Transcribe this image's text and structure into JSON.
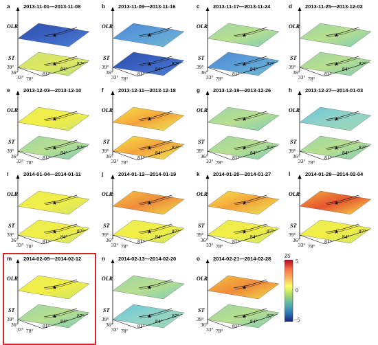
{
  "panels": [
    {
      "label": "a",
      "dates": "2013-11-01—2013-11-08",
      "top": "dark-blue",
      "bottom": "green-yellow"
    },
    {
      "label": "b",
      "dates": "2013-11-09—2013-11-16",
      "top": "blue",
      "bottom": "dark-blue"
    },
    {
      "label": "c",
      "dates": "2013-11-17—2013-11-24",
      "top": "cyan-green",
      "bottom": "blue"
    },
    {
      "label": "d",
      "dates": "2013-11-25—2013-12-02",
      "top": "cyan-green",
      "bottom": "cyan-green"
    },
    {
      "label": "e",
      "dates": "2013-12-03—2013-12-10",
      "top": "yellow",
      "bottom": "cyan-green"
    },
    {
      "label": "f",
      "dates": "2013-12-11—2013-12-18",
      "top": "yellow-red",
      "bottom": "yellow-red"
    },
    {
      "label": "g",
      "dates": "2013-12-19—2013-12-26",
      "top": "cyan-green",
      "bottom": "cyan-green"
    },
    {
      "label": "h",
      "dates": "2013-12-27—2014-01-03",
      "top": "cyan",
      "bottom": "cyan-green"
    },
    {
      "label": "i",
      "dates": "2014-01-04—2014-01-11",
      "top": "yellow",
      "bottom": "yellow"
    },
    {
      "label": "j",
      "dates": "2014-01-12—2014-01-19",
      "top": "orange",
      "bottom": "yellow"
    },
    {
      "label": "k",
      "dates": "2014-01-20—2014-01-27",
      "top": "yellow-red",
      "bottom": "yellow"
    },
    {
      "label": "l",
      "dates": "2014-01-28—2014-02-04",
      "top": "orange-red",
      "bottom": "yellow"
    },
    {
      "label": "m",
      "dates": "2014-02-05—2014-02-12",
      "top": "yellow",
      "bottom": "cyan-green"
    },
    {
      "label": "n",
      "dates": "2014-02-13—2014-02-20",
      "top": "cyan-green",
      "bottom": "cyan"
    },
    {
      "label": "o",
      "dates": "2014-02-21—2014-02-28",
      "top": "orange",
      "bottom": "cyan-green"
    }
  ],
  "axes": {
    "olr_label": "OLR",
    "st_label": "ST",
    "lat_ticks": [
      "39°",
      "36°",
      "33°"
    ],
    "lon_ticks": [
      "78°",
      "81°",
      "84°",
      "87°"
    ]
  },
  "colorbar": {
    "label": "ZS",
    "ticks": [
      "5",
      "0",
      "−5"
    ],
    "colors": [
      "#b40426",
      "#f46d43",
      "#fdae61",
      "#ffff66",
      "#a6d96a",
      "#5ab4ac",
      "#2c7bb6",
      "#1a237e"
    ]
  },
  "highlight": "m",
  "palette": {
    "dark-blue": [
      "#2c4fa6",
      "#3b63c4",
      "#4a7fd0"
    ],
    "blue": [
      "#4f86d6",
      "#5aa0d8",
      "#74b9d0"
    ],
    "cyan": [
      "#6cc4d8",
      "#8fd3c8",
      "#9ed9b0"
    ],
    "cyan-green": [
      "#9ed6a8",
      "#b7df8e",
      "#7fcbb7"
    ],
    "green-yellow": [
      "#c9e377",
      "#dfe860",
      "#b4dc7e"
    ],
    "yellow": [
      "#e8ec55",
      "#f2ee45",
      "#cfe36b"
    ],
    "yellow-red": [
      "#f4e64a",
      "#f6a23a",
      "#e8ec55"
    ],
    "orange": [
      "#f5c542",
      "#f08a3a",
      "#eee04a"
    ],
    "orange-red": [
      "#f0b03e",
      "#e8542f",
      "#f4e34a"
    ]
  }
}
